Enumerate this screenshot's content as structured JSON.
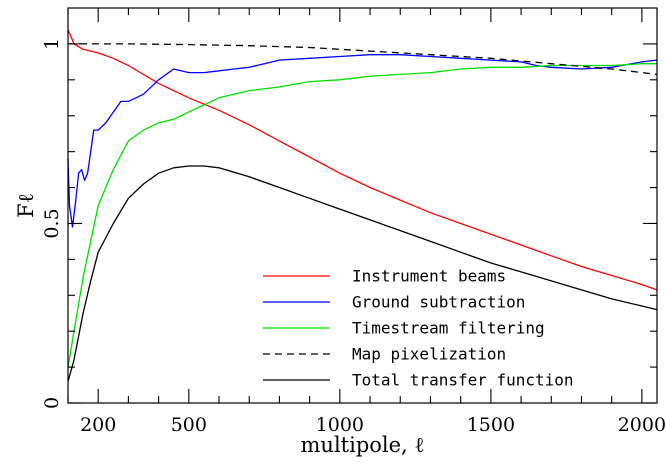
{
  "chart_data": {
    "type": "line",
    "xlabel": "multipole, ℓ",
    "ylabel": "Fℓ",
    "xlim": [
      100,
      2050
    ],
    "ylim": [
      0,
      1.1
    ],
    "x_ticks": [
      200,
      500,
      1000,
      1500,
      2000
    ],
    "x_tick_labels": [
      "200",
      "500",
      "1000",
      "1500",
      "2000"
    ],
    "x_minor_ticks": [
      100,
      300,
      400,
      600,
      700,
      800,
      900,
      1100,
      1200,
      1300,
      1400,
      1600,
      1700,
      1800,
      1900
    ],
    "y_ticks": [
      0,
      0.5,
      1
    ],
    "y_tick_labels": [
      "0",
      "0.5",
      "1"
    ],
    "y_minor_ticks": [
      0.1,
      0.2,
      0.3,
      0.4,
      0.6,
      0.7,
      0.8,
      0.9
    ],
    "grid": false,
    "legend_position": "bottom-right",
    "series": [
      {
        "name": "Instrument beams",
        "color": "#ff0000",
        "dash": "solid",
        "x": [
          100,
          120,
          150,
          200,
          250,
          300,
          400,
          500,
          600,
          700,
          800,
          900,
          1000,
          1100,
          1200,
          1300,
          1400,
          1500,
          1600,
          1700,
          1800,
          1900,
          2000,
          2050
        ],
        "y": [
          1.04,
          1.0,
          0.985,
          0.975,
          0.96,
          0.94,
          0.89,
          0.85,
          0.815,
          0.775,
          0.73,
          0.685,
          0.64,
          0.6,
          0.565,
          0.53,
          0.5,
          0.47,
          0.44,
          0.41,
          0.38,
          0.355,
          0.33,
          0.315
        ]
      },
      {
        "name": "Ground subtraction",
        "color": "#0000ff",
        "dash": "solid",
        "x": [
          100,
          105,
          115,
          125,
          135,
          145,
          155,
          165,
          175,
          185,
          200,
          225,
          250,
          275,
          300,
          325,
          350,
          400,
          450,
          500,
          550,
          600,
          650,
          700,
          750,
          800,
          900,
          1000,
          1100,
          1200,
          1300,
          1400,
          1500,
          1600,
          1650,
          1700,
          1800,
          1900,
          2000,
          2050
        ],
        "y": [
          0.68,
          0.55,
          0.49,
          0.56,
          0.64,
          0.65,
          0.62,
          0.64,
          0.7,
          0.76,
          0.76,
          0.78,
          0.81,
          0.84,
          0.84,
          0.85,
          0.86,
          0.9,
          0.93,
          0.92,
          0.92,
          0.925,
          0.93,
          0.935,
          0.945,
          0.955,
          0.96,
          0.965,
          0.97,
          0.97,
          0.965,
          0.96,
          0.955,
          0.95,
          0.94,
          0.935,
          0.93,
          0.935,
          0.95,
          0.955
        ]
      },
      {
        "name": "Timestream filtering",
        "color": "#00e000",
        "dash": "solid",
        "x": [
          100,
          120,
          150,
          175,
          200,
          250,
          300,
          350,
          400,
          450,
          500,
          550,
          600,
          700,
          800,
          900,
          1000,
          1100,
          1200,
          1300,
          1400,
          1500,
          1600,
          1700,
          1800,
          1900,
          2000,
          2050
        ],
        "y": [
          0.1,
          0.2,
          0.35,
          0.45,
          0.55,
          0.65,
          0.73,
          0.76,
          0.78,
          0.79,
          0.81,
          0.83,
          0.85,
          0.87,
          0.88,
          0.895,
          0.9,
          0.91,
          0.915,
          0.92,
          0.93,
          0.935,
          0.935,
          0.94,
          0.94,
          0.94,
          0.945,
          0.945
        ]
      },
      {
        "name": "Map pixelization",
        "color": "#000000",
        "dash": "dashed",
        "x": [
          100,
          300,
          500,
          700,
          900,
          1100,
          1300,
          1500,
          1700,
          1900,
          2050
        ],
        "y": [
          1.0,
          1.0,
          0.998,
          0.995,
          0.99,
          0.98,
          0.97,
          0.96,
          0.945,
          0.93,
          0.915
        ]
      },
      {
        "name": "Total transfer function",
        "color": "#000000",
        "dash": "solid",
        "x": [
          100,
          120,
          150,
          175,
          200,
          250,
          300,
          350,
          400,
          450,
          500,
          550,
          600,
          700,
          800,
          900,
          1000,
          1100,
          1200,
          1300,
          1400,
          1500,
          1600,
          1700,
          1800,
          1900,
          2000,
          2050
        ],
        "y": [
          0.06,
          0.12,
          0.25,
          0.34,
          0.42,
          0.5,
          0.57,
          0.61,
          0.64,
          0.655,
          0.66,
          0.66,
          0.655,
          0.63,
          0.6,
          0.57,
          0.54,
          0.51,
          0.48,
          0.45,
          0.42,
          0.39,
          0.365,
          0.34,
          0.315,
          0.29,
          0.27,
          0.26
        ]
      }
    ]
  }
}
